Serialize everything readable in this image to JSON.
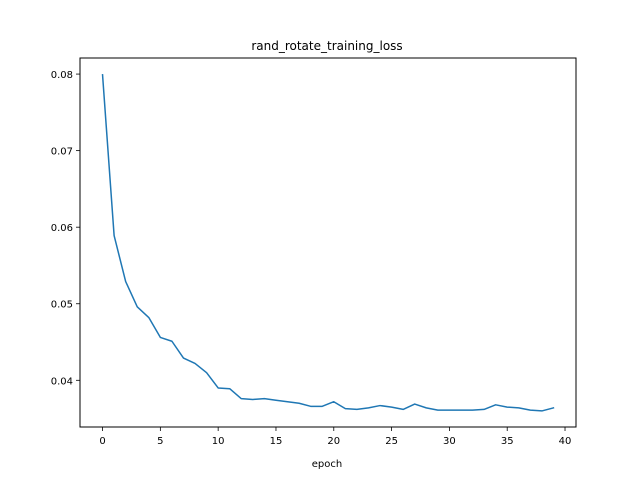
{
  "chart_data": {
    "type": "line",
    "title": "rand_rotate_training_loss",
    "xlabel": "epoch",
    "ylabel": "",
    "xlim": [
      -1.95,
      40.95
    ],
    "ylim": [
      0.0339,
      0.0821
    ],
    "xticks": [
      0,
      5,
      10,
      15,
      20,
      25,
      30,
      35,
      40
    ],
    "xtick_labels": [
      "0",
      "5",
      "10",
      "15",
      "20",
      "25",
      "30",
      "35",
      "40"
    ],
    "yticks": [
      0.04,
      0.05,
      0.06,
      0.07,
      0.08
    ],
    "ytick_labels": [
      "0.04",
      "0.05",
      "0.06",
      "0.07",
      "0.08"
    ],
    "grid": false,
    "legend": "none",
    "line_color": "#1f77b4",
    "series": [
      {
        "x": [
          0,
          1,
          2,
          3,
          4,
          5,
          6,
          7,
          8,
          9,
          10,
          11,
          12,
          13,
          14,
          15,
          16,
          17,
          18,
          19,
          20,
          21,
          22,
          23,
          24,
          25,
          26,
          27,
          28,
          29,
          30,
          31,
          32,
          33,
          34,
          35,
          36,
          37,
          38,
          39
        ],
        "values": [
          0.0799,
          0.0589,
          0.0529,
          0.0496,
          0.0482,
          0.0456,
          0.0451,
          0.0429,
          0.0422,
          0.041,
          0.039,
          0.0389,
          0.0376,
          0.0375,
          0.0376,
          0.0374,
          0.0372,
          0.037,
          0.0366,
          0.0366,
          0.0372,
          0.0363,
          0.0362,
          0.0364,
          0.0367,
          0.0365,
          0.0362,
          0.0369,
          0.0364,
          0.0361,
          0.0361,
          0.0361,
          0.0361,
          0.0362,
          0.0368,
          0.0365,
          0.0364,
          0.0361,
          0.036,
          0.0364
        ]
      }
    ]
  }
}
